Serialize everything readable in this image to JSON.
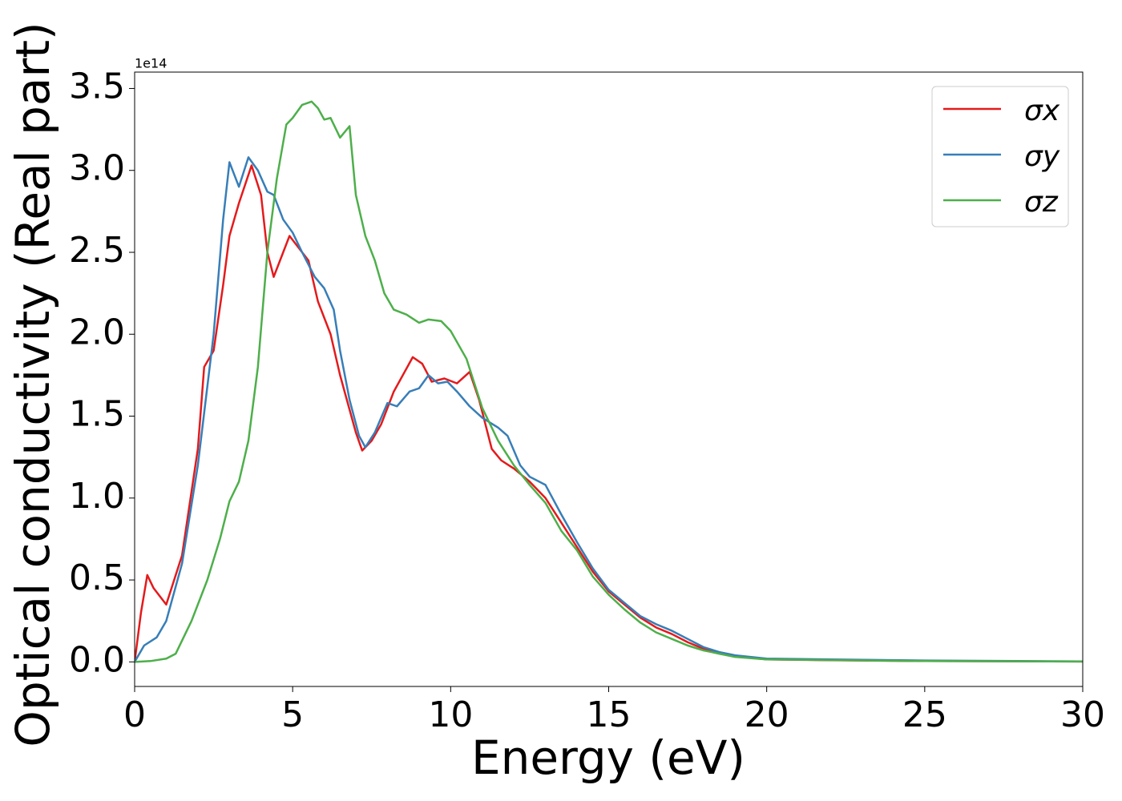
{
  "chart_data": {
    "type": "line",
    "x_label": "Energy (eV)",
    "y_label": "Optical conductivity (Real part)",
    "y_offset_text": "1e14",
    "xlim": [
      0,
      30
    ],
    "xticks": [
      0,
      5,
      10,
      15,
      20,
      25,
      30
    ],
    "ylim": [
      -0.15,
      3.6
    ],
    "yticks": [
      {
        "value": 0,
        "label": "0.0"
      },
      0.5,
      {
        "value": 1,
        "label": "1.0"
      },
      1.5,
      {
        "value": 2,
        "label": "2.0"
      },
      2.5,
      {
        "value": 3,
        "label": "3.0"
      },
      3.5
    ],
    "legend": "upper right",
    "series": [
      {
        "name": "σx",
        "color": "#e41a1c",
        "x": [
          0,
          0.2,
          0.4,
          0.6,
          0.8,
          1.0,
          1.5,
          2.0,
          2.2,
          2.5,
          2.8,
          3.0,
          3.3,
          3.7,
          4.0,
          4.2,
          4.4,
          4.7,
          4.9,
          5.3,
          5.5,
          5.8,
          6.2,
          6.5,
          7.0,
          7.2,
          7.5,
          7.8,
          8.2,
          8.8,
          9.1,
          9.4,
          9.8,
          10.2,
          10.6,
          10.9,
          11.3,
          11.6,
          12.0,
          12.5,
          13.0,
          13.5,
          14.0,
          14.5,
          15.0,
          15.5,
          16.0,
          16.5,
          17.0,
          17.5,
          18,
          18.5,
          19,
          20,
          22,
          25,
          30
        ],
        "values": [
          0,
          0.3,
          0.53,
          0.45,
          0.4,
          0.35,
          0.65,
          1.3,
          1.8,
          1.9,
          2.3,
          2.6,
          2.8,
          3.03,
          2.85,
          2.5,
          2.35,
          2.5,
          2.6,
          2.5,
          2.45,
          2.2,
          2.0,
          1.75,
          1.4,
          1.29,
          1.35,
          1.45,
          1.65,
          1.86,
          1.82,
          1.71,
          1.73,
          1.7,
          1.77,
          1.6,
          1.3,
          1.23,
          1.18,
          1.1,
          1.0,
          0.85,
          0.7,
          0.55,
          0.43,
          0.35,
          0.27,
          0.21,
          0.17,
          0.12,
          0.08,
          0.05,
          0.035,
          0.015,
          0.01,
          0.005,
          0.002
        ]
      },
      {
        "name": "σy",
        "color": "#377eb8",
        "x": [
          0,
          0.3,
          0.7,
          1.0,
          1.5,
          2.0,
          2.5,
          2.8,
          3.0,
          3.2,
          3.3,
          3.6,
          3.9,
          4.2,
          4.4,
          4.7,
          5.0,
          5.3,
          5.7,
          6.0,
          6.3,
          6.5,
          6.8,
          7.1,
          7.3,
          7.6,
          8.0,
          8.3,
          8.7,
          9.0,
          9.3,
          9.6,
          9.9,
          10.2,
          10.6,
          11.0,
          11.5,
          11.8,
          12.2,
          12.5,
          13.0,
          13.5,
          14.0,
          14.5,
          15.0,
          15.5,
          16.0,
          16.5,
          17.0,
          17.5,
          18,
          18.5,
          19,
          20,
          22,
          25,
          30
        ],
        "values": [
          0,
          0.1,
          0.15,
          0.25,
          0.6,
          1.2,
          2.0,
          2.7,
          3.05,
          2.95,
          2.9,
          3.08,
          3.0,
          2.87,
          2.85,
          2.7,
          2.62,
          2.5,
          2.35,
          2.28,
          2.15,
          1.9,
          1.6,
          1.38,
          1.31,
          1.4,
          1.58,
          1.56,
          1.65,
          1.67,
          1.75,
          1.7,
          1.71,
          1.65,
          1.56,
          1.49,
          1.43,
          1.38,
          1.2,
          1.13,
          1.08,
          0.9,
          0.73,
          0.57,
          0.44,
          0.36,
          0.28,
          0.23,
          0.19,
          0.14,
          0.09,
          0.06,
          0.04,
          0.02,
          0.015,
          0.008,
          0.003
        ]
      },
      {
        "name": "σz",
        "color": "#4daf4a",
        "x": [
          0,
          0.5,
          1.0,
          1.3,
          1.8,
          2.3,
          2.7,
          3.0,
          3.3,
          3.6,
          3.9,
          4.2,
          4.5,
          4.8,
          5.0,
          5.3,
          5.6,
          5.8,
          6.0,
          6.2,
          6.5,
          6.8,
          7.0,
          7.3,
          7.6,
          7.9,
          8.2,
          8.6,
          9.0,
          9.3,
          9.7,
          10.0,
          10.5,
          11.0,
          11.5,
          12.0,
          12.5,
          13.0,
          13.5,
          14.0,
          14.5,
          15.0,
          15.5,
          16.0,
          16.5,
          17.0,
          17.5,
          18,
          18.5,
          19,
          20,
          25,
          30
        ],
        "values": [
          0,
          0.005,
          0.02,
          0.05,
          0.25,
          0.5,
          0.75,
          0.98,
          1.1,
          1.35,
          1.8,
          2.5,
          2.95,
          3.28,
          3.32,
          3.4,
          3.42,
          3.38,
          3.31,
          3.32,
          3.2,
          3.27,
          2.85,
          2.6,
          2.45,
          2.25,
          2.15,
          2.12,
          2.07,
          2.09,
          2.08,
          2.02,
          1.85,
          1.55,
          1.35,
          1.2,
          1.08,
          0.97,
          0.8,
          0.68,
          0.52,
          0.41,
          0.32,
          0.24,
          0.18,
          0.14,
          0.1,
          0.07,
          0.05,
          0.03,
          0.015,
          0.005,
          0.002
        ]
      }
    ]
  }
}
